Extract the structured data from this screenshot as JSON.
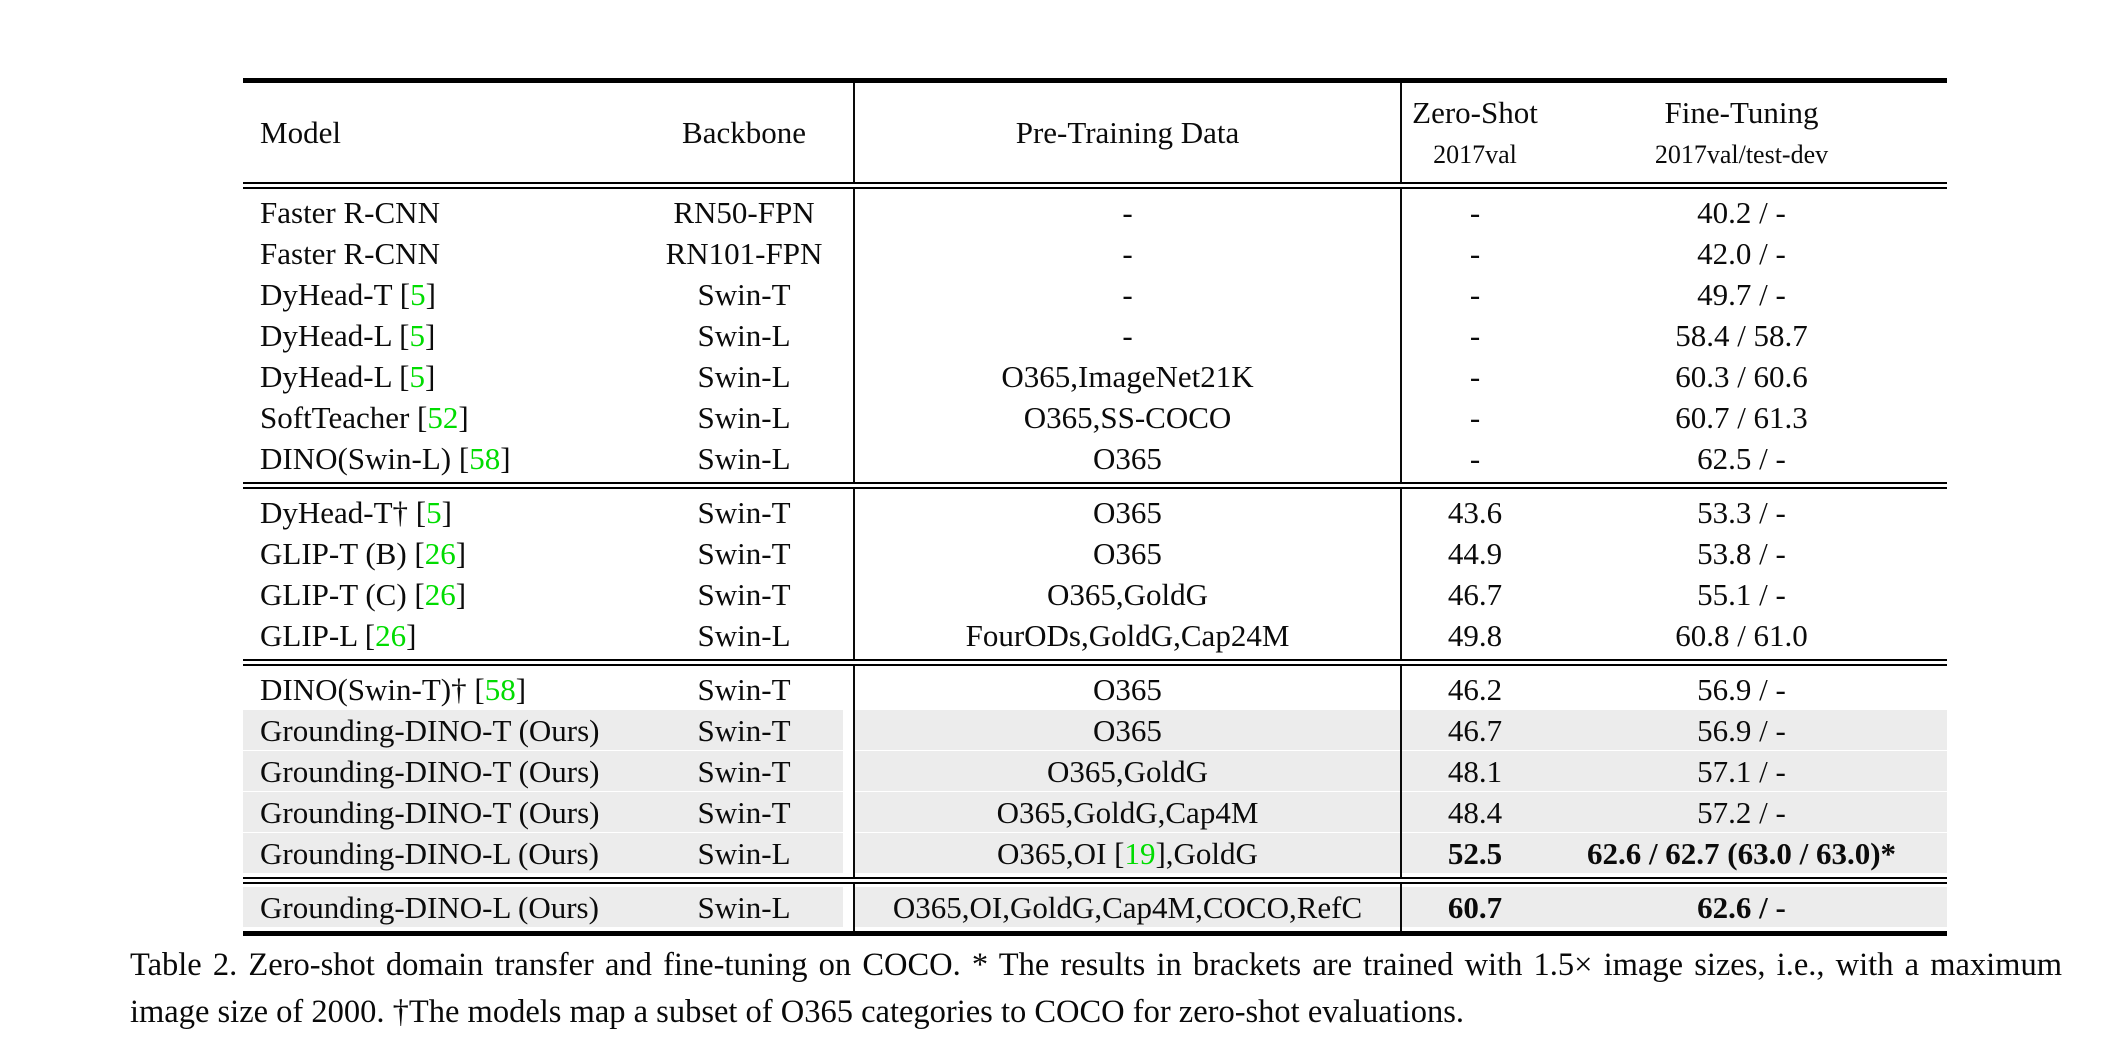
{
  "colors": {
    "citation_green": "#00dc00",
    "highlight_gray": "#ececec",
    "rule_black": "#000000"
  },
  "table": {
    "header": {
      "model": "Model",
      "backbone": "Backbone",
      "pretrain": "Pre-Training Data",
      "zeroshot_main": "Zero-Shot",
      "zeroshot_sub": "2017val",
      "finetune_main": "Fine-Tuning",
      "finetune_sub": "2017val/test-dev"
    },
    "sections": [
      {
        "rows": [
          {
            "model": "Faster R-CNN",
            "backbone": "RN50-FPN",
            "pretrain": "-",
            "zeroshot": "-",
            "finetune": "40.2 / -",
            "highlight": false,
            "bold": false
          },
          {
            "model": "Faster R-CNN",
            "backbone": "RN101-FPN",
            "pretrain": "-",
            "zeroshot": "-",
            "finetune": "42.0 / -",
            "highlight": false,
            "bold": false
          },
          {
            "model": "DyHead-T [5]",
            "backbone": "Swin-T",
            "pretrain": "-",
            "zeroshot": "-",
            "finetune": "49.7 / -",
            "highlight": false,
            "bold": false
          },
          {
            "model": "DyHead-L [5]",
            "backbone": "Swin-L",
            "pretrain": "-",
            "zeroshot": "-",
            "finetune": "58.4 / 58.7",
            "highlight": false,
            "bold": false
          },
          {
            "model": "DyHead-L [5]",
            "backbone": "Swin-L",
            "pretrain": "O365,ImageNet21K",
            "zeroshot": "-",
            "finetune": "60.3 / 60.6",
            "highlight": false,
            "bold": false
          },
          {
            "model": "SoftTeacher [52]",
            "backbone": "Swin-L",
            "pretrain": "O365,SS-COCO",
            "zeroshot": "-",
            "finetune": "60.7 / 61.3",
            "highlight": false,
            "bold": false
          },
          {
            "model": "DINO(Swin-L) [58]",
            "backbone": "Swin-L",
            "pretrain": "O365",
            "zeroshot": "-",
            "finetune": "62.5 / -",
            "highlight": false,
            "bold": false
          }
        ]
      },
      {
        "rows": [
          {
            "model": "DyHead-T† [5]",
            "backbone": "Swin-T",
            "pretrain": "O365",
            "zeroshot": "43.6",
            "finetune": "53.3 / -",
            "highlight": false,
            "bold": false
          },
          {
            "model": "GLIP-T (B) [26]",
            "backbone": "Swin-T",
            "pretrain": "O365",
            "zeroshot": "44.9",
            "finetune": "53.8 / -",
            "highlight": false,
            "bold": false
          },
          {
            "model": "GLIP-T (C) [26]",
            "backbone": "Swin-T",
            "pretrain": "O365,GoldG",
            "zeroshot": "46.7",
            "finetune": "55.1 / -",
            "highlight": false,
            "bold": false
          },
          {
            "model": "GLIP-L [26]",
            "backbone": "Swin-L",
            "pretrain": "FourODs,GoldG,Cap24M",
            "zeroshot": "49.8",
            "finetune": "60.8 / 61.0",
            "highlight": false,
            "bold": false
          }
        ]
      },
      {
        "rows": [
          {
            "model": "DINO(Swin-T)† [58]",
            "backbone": "Swin-T",
            "pretrain": "O365",
            "zeroshot": "46.2",
            "finetune": "56.9 / -",
            "highlight": false,
            "bold": false
          },
          {
            "model": "Grounding-DINO-T (Ours)",
            "backbone": "Swin-T",
            "pretrain": "O365",
            "zeroshot": "46.7",
            "finetune": "56.9 / -",
            "highlight": true,
            "bold": false
          },
          {
            "model": "Grounding-DINO-T (Ours)",
            "backbone": "Swin-T",
            "pretrain": "O365,GoldG",
            "zeroshot": "48.1",
            "finetune": "57.1 / -",
            "highlight": true,
            "bold": false
          },
          {
            "model": "Grounding-DINO-T (Ours)",
            "backbone": "Swin-T",
            "pretrain": "O365,GoldG,Cap4M",
            "zeroshot": "48.4",
            "finetune": "57.2 / -",
            "highlight": true,
            "bold": false
          },
          {
            "model": "Grounding-DINO-L (Ours)",
            "backbone": "Swin-L",
            "pretrain": "O365,OI [19],GoldG",
            "zeroshot": "52.5",
            "finetune": "62.6 / 62.7 (63.0 / 63.0)*",
            "highlight": true,
            "bold": true
          }
        ]
      },
      {
        "rows": [
          {
            "model": "Grounding-DINO-L (Ours)",
            "backbone": "Swin-L",
            "pretrain": "O365,OI,GoldG,Cap4M,COCO,RefC",
            "zeroshot": "60.7",
            "finetune": "62.6 / -",
            "highlight": true,
            "bold": true
          }
        ]
      }
    ]
  },
  "caption": "Table 2.  Zero-shot domain transfer and fine-tuning on COCO. * The results in brackets are trained with 1.5× image sizes, i.e., with a maximum image size of 2000. †The models map a subset of O365 categories to COCO for zero-shot evaluations."
}
